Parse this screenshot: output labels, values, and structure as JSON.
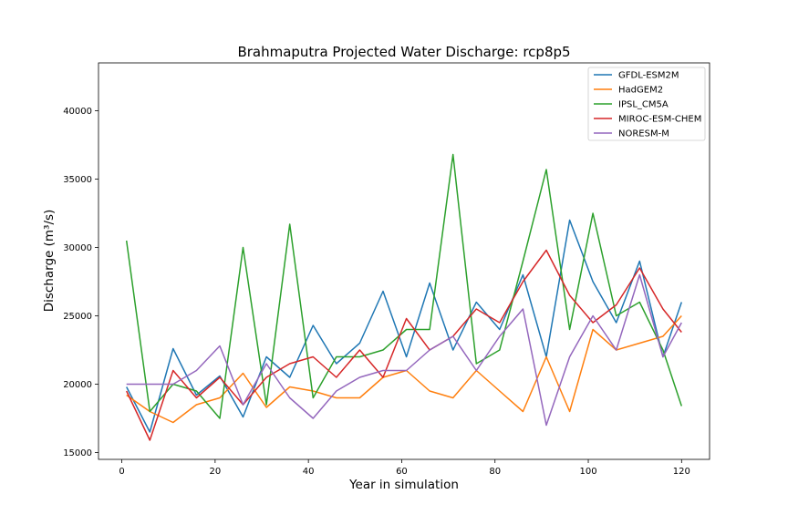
{
  "chart_data": {
    "type": "line",
    "title": "Brahmaputra Projected Water Discharge: rcp8p5",
    "xlabel": "Year in simulation",
    "ylabel": "Discharge (m³/s)",
    "xlim": [
      -5,
      126
    ],
    "ylim": [
      14500,
      43500
    ],
    "xticks": [
      0,
      20,
      40,
      60,
      80,
      100,
      120
    ],
    "yticks": [
      15000,
      20000,
      25000,
      30000,
      35000,
      40000
    ],
    "legend_position": "upper right",
    "grid": false,
    "x": [
      1,
      6,
      11,
      16,
      21,
      26,
      31,
      36,
      41,
      46,
      51,
      56,
      61,
      66,
      71,
      76,
      81,
      86,
      91,
      96,
      101,
      106,
      111,
      116,
      120
    ],
    "series": [
      {
        "name": "GFDL-ESM2M",
        "color": "#1f77b4",
        "values": [
          19800,
          16500,
          22600,
          19200,
          20600,
          17600,
          22000,
          20500,
          24300,
          21500,
          23000,
          26800,
          22000,
          27400,
          22500,
          26000,
          24000,
          28000,
          22000,
          32000,
          27500,
          24500,
          29000,
          22000,
          26000
        ]
      },
      {
        "name": "HadGEM2",
        "color": "#ff7f0e",
        "values": [
          19200,
          18000,
          17200,
          18500,
          19000,
          20800,
          18300,
          19800,
          19500,
          19000,
          19000,
          20500,
          21000,
          19500,
          19000,
          21000,
          19500,
          18000,
          22000,
          18000,
          24000,
          22500,
          23000,
          23500,
          25000
        ]
      },
      {
        "name": "IPSL_CM5A",
        "color": "#2ca02c",
        "values": [
          30500,
          18000,
          20000,
          19500,
          17500,
          30000,
          18500,
          31700,
          19000,
          22000,
          22000,
          22500,
          24000,
          24000,
          36800,
          21500,
          22500,
          29000,
          35700,
          24000,
          32500,
          25000,
          26000,
          22500,
          18400
        ]
      },
      {
        "name": "MIROC-ESM-CHEM",
        "color": "#d62728",
        "values": [
          19500,
          15900,
          21000,
          19000,
          20500,
          18500,
          20500,
          21500,
          22000,
          20500,
          22500,
          20500,
          24800,
          22500,
          23500,
          25500,
          24500,
          27500,
          29800,
          26500,
          24500,
          25800,
          28500,
          25500,
          23800
        ]
      },
      {
        "name": "NORESM-M",
        "color": "#9467bd",
        "values": [
          20000,
          20000,
          20000,
          21000,
          22800,
          18500,
          21500,
          19000,
          17500,
          19500,
          20500,
          21000,
          21000,
          22500,
          23500,
          21000,
          23500,
          25500,
          17000,
          22000,
          25000,
          22500,
          28000,
          22000,
          24500
        ]
      }
    ]
  }
}
